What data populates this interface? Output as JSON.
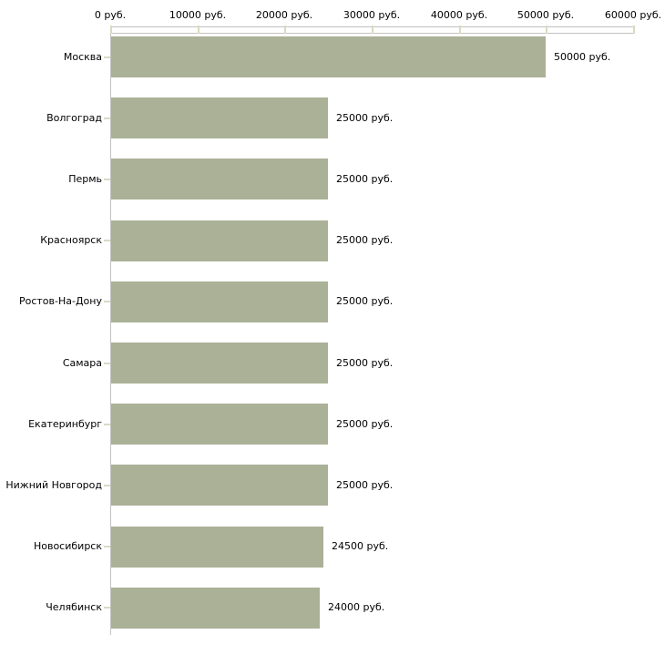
{
  "chart_data": {
    "type": "bar",
    "orientation": "horizontal",
    "title": "",
    "xlabel": "",
    "ylabel": "",
    "unit": "руб.",
    "categories": [
      "Москва",
      "Волгоград",
      "Пермь",
      "Красноярск",
      "Ростов-На-Дону",
      "Самара",
      "Екатеринбург",
      "Нижний Новгород",
      "Новосибирск",
      "Челябинск"
    ],
    "values": [
      50000,
      25000,
      25000,
      25000,
      25000,
      25000,
      25000,
      25000,
      24500,
      24000
    ],
    "value_labels": [
      "50000 руб.",
      "25000 руб.",
      "25000 руб.",
      "25000 руб.",
      "25000 руб.",
      "25000 руб.",
      "25000 руб.",
      "25000 руб.",
      "24500 руб.",
      "24000 руб."
    ],
    "x_axis": {
      "position": "top",
      "min": 0,
      "max": 60000,
      "ticks": [
        0,
        10000,
        20000,
        30000,
        40000,
        50000,
        60000
      ],
      "tick_labels": [
        "0 руб.",
        "10000 руб.",
        "20000 руб.",
        "30000 руб.",
        "40000 руб.",
        "50000 руб.",
        "60000 руб."
      ]
    },
    "grid": false,
    "legend": false,
    "colors": {
      "bar": "#abb197",
      "axis_line": "#c2c2c2",
      "tick_mark": "#d9dac1",
      "text": "#000000",
      "background": "#ffffff"
    }
  }
}
